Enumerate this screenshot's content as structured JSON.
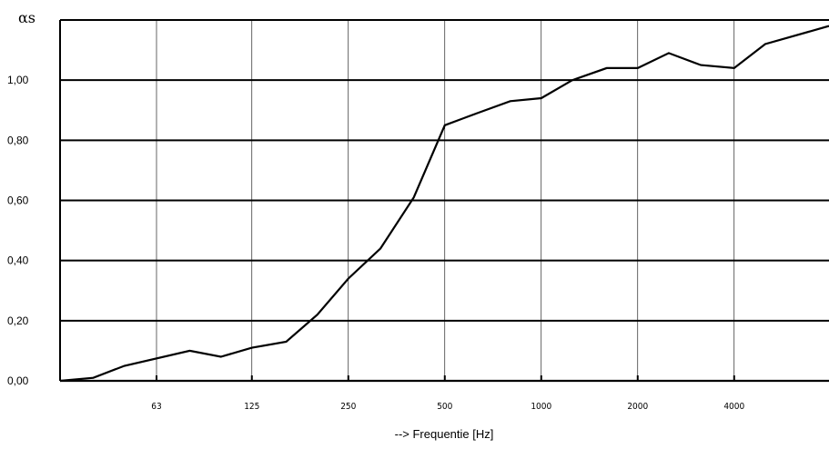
{
  "chart_data": {
    "type": "line",
    "xlabel": "--> Frequentie [Hz]",
    "ylabel": "αs",
    "x_scale": "log",
    "xlim": [
      25,
      8000
    ],
    "ylim": [
      0,
      1.2
    ],
    "yticks": [
      {
        "value": 0.0,
        "label": "0,00"
      },
      {
        "value": 0.2,
        "label": "0,20"
      },
      {
        "value": 0.4,
        "label": "0,40"
      },
      {
        "value": 0.6,
        "label": "0,60"
      },
      {
        "value": 0.8,
        "label": "0,80"
      },
      {
        "value": 1.0,
        "label": "1,00"
      }
    ],
    "xticks": [
      {
        "value": 63,
        "label": "63"
      },
      {
        "value": 125,
        "label": "125"
      },
      {
        "value": 250,
        "label": "250"
      },
      {
        "value": 500,
        "label": "500"
      },
      {
        "value": 1000,
        "label": "1000"
      },
      {
        "value": 2000,
        "label": "2000"
      },
      {
        "value": 4000,
        "label": "4000"
      }
    ],
    "grid": true,
    "series": [
      {
        "color": "#000000",
        "points": [
          {
            "x": 31.5,
            "y": 0.0
          },
          {
            "x": 40,
            "y": 0.01
          },
          {
            "x": 50,
            "y": 0.05
          },
          {
            "x": 80,
            "y": 0.1
          },
          {
            "x": 100,
            "y": 0.08
          },
          {
            "x": 125,
            "y": 0.11
          },
          {
            "x": 160,
            "y": 0.13
          },
          {
            "x": 200,
            "y": 0.22
          },
          {
            "x": 250,
            "y": 0.34
          },
          {
            "x": 315,
            "y": 0.44
          },
          {
            "x": 400,
            "y": 0.61
          },
          {
            "x": 500,
            "y": 0.85
          },
          {
            "x": 630,
            "y": 0.89
          },
          {
            "x": 800,
            "y": 0.93
          },
          {
            "x": 1000,
            "y": 0.94
          },
          {
            "x": 1250,
            "y": 1.0
          },
          {
            "x": 1600,
            "y": 1.04
          },
          {
            "x": 2000,
            "y": 1.04
          },
          {
            "x": 2500,
            "y": 1.09
          },
          {
            "x": 3150,
            "y": 1.05
          },
          {
            "x": 4000,
            "y": 1.04
          },
          {
            "x": 5000,
            "y": 1.12
          },
          {
            "x": 8000,
            "y": 1.18
          }
        ]
      }
    ]
  }
}
